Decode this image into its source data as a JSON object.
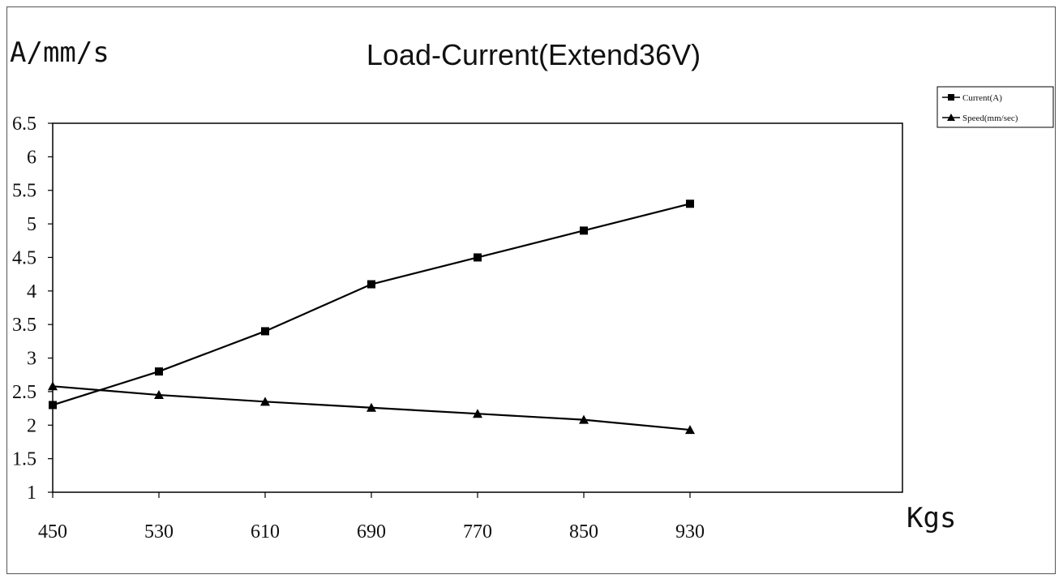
{
  "chart_data": {
    "type": "line",
    "title": "Load-Current(Extend36V)",
    "ylabel": "A/mm/s",
    "xlabel": "Kgs",
    "x": [
      450,
      530,
      610,
      690,
      770,
      850,
      930
    ],
    "x_tick_labels": [
      "450",
      "530",
      "610",
      "690",
      "770",
      "850",
      "930"
    ],
    "xlim": [
      450,
      1090
    ],
    "ylim": [
      1,
      6.5
    ],
    "y_ticks": [
      1,
      1.5,
      2,
      2.5,
      3,
      3.5,
      4,
      4.5,
      5,
      5.5,
      6,
      6.5
    ],
    "y_tick_labels": [
      "1",
      "1.5",
      "2",
      "2.5",
      "3",
      "3.5",
      "4",
      "4.5",
      "5",
      "5.5",
      "6",
      "6.5"
    ],
    "grid": false,
    "legend_position": "top-right",
    "series": [
      {
        "name": "Current(A)",
        "marker": "square",
        "values": [
          2.3,
          2.8,
          3.4,
          4.1,
          4.5,
          4.9,
          5.3
        ]
      },
      {
        "name": "Speed(mm/sec)",
        "marker": "triangle",
        "values": [
          2.58,
          2.45,
          2.35,
          2.26,
          2.17,
          2.08,
          1.93
        ]
      }
    ],
    "colors": {
      "line": "#000000",
      "axis": "#000000"
    }
  }
}
